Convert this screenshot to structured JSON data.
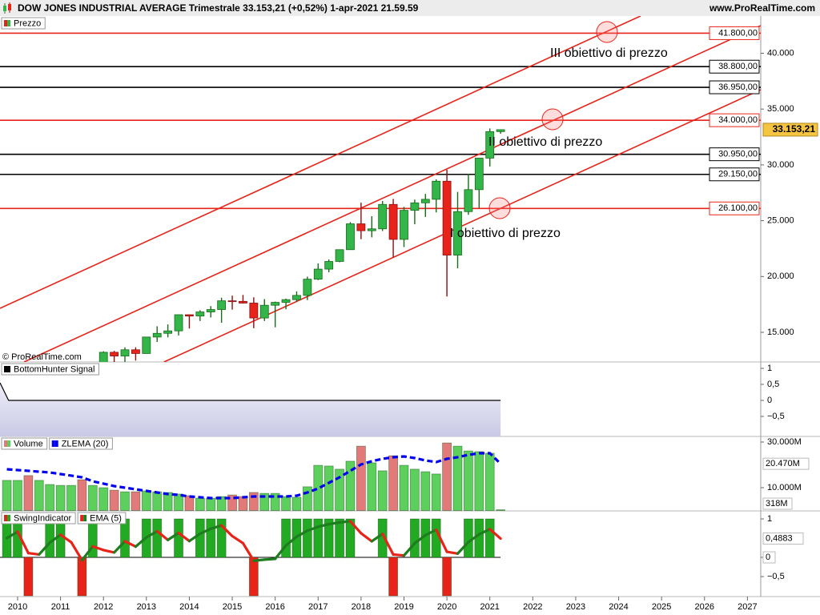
{
  "chart_data": [
    {
      "type": "candlestick",
      "title": "DOW JONES INDUSTRIAL AVERAGE Trimestrale 33.153,21 (+0,52%) 1-apr-2021 21.59.59",
      "source": "www.ProRealTime.com",
      "watermark": "© ProRealTime.com",
      "name": "Prezzo",
      "up_color": "#33b54a",
      "down_color": "#e8241a",
      "x": [
        2012,
        2012.25,
        2012.5,
        2012.75,
        2013,
        2013.25,
        2013.5,
        2013.75,
        2014,
        2014.25,
        2014.5,
        2014.75,
        2015,
        2015.25,
        2015.5,
        2015.75,
        2016,
        2016.25,
        2016.5,
        2016.75,
        2017,
        2017.25,
        2017.5,
        2017.75,
        2018,
        2018.25,
        2018.5,
        2018.75,
        2019,
        2019.25,
        2019.5,
        2019.75,
        2020,
        2020.25,
        2020.5,
        2020.75,
        2021,
        2021.25
      ],
      "open": [
        12217,
        13212,
        12880,
        13437,
        13104,
        14579,
        14910,
        15130,
        16577,
        16458,
        16827,
        17043,
        17823,
        17776,
        17620,
        16285,
        17425,
        17685,
        17930,
        18308,
        19763,
        20663,
        21350,
        22405,
        24719,
        24103,
        24271,
        26458,
        23327,
        25929,
        26600,
        26917,
        28538,
        21917,
        25813,
        27782,
        30606,
        32982
      ],
      "high": [
        13297,
        13338,
        13653,
        13661,
        14585,
        15542,
        15709,
        16588,
        16588,
        16978,
        17350,
        18103,
        18289,
        18351,
        18137,
        17977,
        17750,
        18017,
        18668,
        19988,
        21169,
        21535,
        22419,
        24876,
        26617,
        25403,
        26769,
        26952,
        26241,
        26890,
        27399,
        28702,
        29569,
        27581,
        29199,
        30637,
        33259,
        33167
      ],
      "low": [
        12215,
        12035,
        12101,
        12471,
        13104,
        14137,
        14551,
        14719,
        15340,
        16015,
        16333,
        15855,
        17037,
        17576,
        15370,
        16013,
        15451,
        17063,
        17713,
        17884,
        19677,
        20379,
        21279,
        22405,
        23344,
        23509,
        24078,
        21713,
        22638,
        24680,
        25339,
        25743,
        18214,
        20735,
        25524,
        26143,
        29856,
        32790
      ],
      "close": [
        13212,
        12880,
        13437,
        13104,
        14579,
        14910,
        15130,
        16577,
        16458,
        16827,
        17043,
        17823,
        17776,
        17620,
        16285,
        17425,
        17685,
        17930,
        18308,
        19763,
        20663,
        21350,
        22405,
        24719,
        24103,
        24271,
        26458,
        23327,
        25929,
        26600,
        26917,
        28538,
        21917,
        25813,
        27782,
        30606,
        32982,
        33153
      ],
      "ylim": [
        12346,
        43336
      ],
      "yticks": [
        {
          "value": 15000,
          "label": "15.000"
        },
        {
          "value": 20000,
          "label": "20.000"
        },
        {
          "value": 25000,
          "label": "25.000"
        },
        {
          "value": 30000,
          "label": "30.000"
        },
        {
          "value": 35000,
          "label": "35.000"
        },
        {
          "value": 40000,
          "label": "40.000"
        }
      ],
      "levels": [
        {
          "value": 41800,
          "label": "41.800,00",
          "color": "#e8241a"
        },
        {
          "value": 38800,
          "label": "38.800,00",
          "color": "#000000"
        },
        {
          "value": 36950,
          "label": "36.950,00",
          "color": "#000000"
        },
        {
          "value": 34000,
          "label": "34.000,00",
          "color": "#e8241a"
        },
        {
          "value": 30950,
          "label": "30.950,00",
          "color": "#000000"
        },
        {
          "value": 29150,
          "label": "29.150,00",
          "color": "#000000"
        },
        {
          "value": 26100,
          "label": "26.100,00",
          "color": "#e8241a"
        }
      ],
      "tags": [
        {
          "value": 33153.21,
          "label": "33.153,21",
          "color": "#f5c542"
        }
      ],
      "trendlines": {
        "color": "#e8241a",
        "lines": [
          {
            "x": [
              2009.59,
              2024.51
            ],
            "y": [
              17152,
              43336
            ]
          },
          {
            "x": [
              2010.15,
              2027.31
            ],
            "y": [
              12346,
              42475
            ]
          },
          {
            "x": [
              2013.41,
              2027.31
            ],
            "y": [
              12346,
              36736
            ]
          }
        ]
      },
      "annotations": [
        "III obiettivo di prezzo",
        "II obiettivo di prezzo",
        "I obiettivo di prezzo"
      ]
    },
    {
      "type": "area",
      "series": [
        {
          "name": "BottomHunter Signal",
          "color": "#000000",
          "x": [
            2009.59,
            2009.79,
            2021.25
          ],
          "values": [
            0.55,
            0,
            0
          ]
        }
      ],
      "ylim": [
        -1.125,
        1.2
      ],
      "yticks": [
        1,
        {
          "value": 0.5,
          "label": "0,5"
        },
        0,
        {
          "value": -0.5,
          "label": "−0,5"
        }
      ]
    },
    {
      "type": "bar",
      "x": [
        2009.75,
        2010,
        2010.25,
        2010.5,
        2010.75,
        2011,
        2011.25,
        2011.5,
        2011.75,
        2012,
        2012.25,
        2012.5,
        2012.75,
        2013,
        2013.25,
        2013.5,
        2013.75,
        2014,
        2014.25,
        2014.5,
        2014.75,
        2015,
        2015.25,
        2015.5,
        2015.75,
        2016,
        2016.25,
        2016.5,
        2016.75,
        2017,
        2017.25,
        2017.5,
        2017.75,
        2018,
        2018.25,
        2018.5,
        2018.75,
        2019,
        2019.25,
        2019.5,
        2019.75,
        2020,
        2020.25,
        2020.5,
        2020.75,
        2021,
        2021.25
      ],
      "series": [
        {
          "name": "Volume",
          "type": "bar",
          "colors": [
            "#5ccf5c",
            "#5ccf5c",
            "#e27a7a",
            "#5ccf5c",
            "#5ccf5c",
            "#5ccf5c",
            "#5ccf5c",
            "#e27a7a",
            "#5ccf5c",
            "#5ccf5c",
            "#e27a7a",
            "#5ccf5c",
            "#e27a7a",
            "#5ccf5c",
            "#5ccf5c",
            "#5ccf5c",
            "#5ccf5c",
            "#e27a7a",
            "#5ccf5c",
            "#5ccf5c",
            "#5ccf5c",
            "#e27a7a",
            "#e27a7a",
            "#e27a7a",
            "#5ccf5c",
            "#5ccf5c",
            "#5ccf5c",
            "#5ccf5c",
            "#5ccf5c",
            "#5ccf5c",
            "#5ccf5c",
            "#5ccf5c",
            "#5ccf5c",
            "#e27a7a",
            "#5ccf5c",
            "#5ccf5c",
            "#e27a7a",
            "#5ccf5c",
            "#5ccf5c",
            "#5ccf5c",
            "#5ccf5c",
            "#e27a7a",
            "#5ccf5c",
            "#5ccf5c",
            "#5ccf5c",
            "#5ccf5c",
            "#5ccf5c"
          ],
          "values": [
            13200,
            13200,
            15300,
            13200,
            11400,
            11000,
            11000,
            13500,
            11000,
            10000,
            8900,
            8200,
            8200,
            8600,
            8200,
            7900,
            7200,
            6500,
            5400,
            5400,
            6100,
            6800,
            6100,
            7900,
            7500,
            7500,
            6100,
            5800,
            10400,
            19800,
            19500,
            18100,
            21600,
            28200,
            20900,
            17400,
            24000,
            19800,
            18100,
            17000,
            16000,
            29600,
            28200,
            26100,
            25800,
            25100,
            318
          ]
        },
        {
          "name": "ZLEMA (20)",
          "type": "line",
          "color": "#0000ee",
          "values": [
            18070,
            17720,
            17370,
            17020,
            16670,
            15970,
            15270,
            14560,
            12810,
            11760,
            10700,
            10000,
            9300,
            8600,
            7890,
            7190,
            6840,
            6140,
            5790,
            5440,
            5440,
            5440,
            5790,
            6140,
            6140,
            6140,
            6140,
            6490,
            7890,
            9650,
            12110,
            14560,
            17370,
            20180,
            21580,
            22640,
            23340,
            23690,
            22990,
            21930,
            21230,
            22640,
            23340,
            24390,
            25090,
            25090,
            20470
          ]
        }
      ],
      "ylim": [
        -180,
        32460
      ],
      "yticks": [
        {
          "value": 30000,
          "label": "30.000M"
        },
        {
          "value": 10000,
          "label": "10.000M"
        }
      ],
      "tags": [
        {
          "value": 20470,
          "label": "20.470M",
          "color": "#0000ee"
        },
        {
          "value": 318,
          "label": "318M",
          "color": "#33b54a"
        }
      ]
    },
    {
      "type": "bar",
      "x": [
        2009.75,
        2010,
        2010.25,
        2010.5,
        2010.75,
        2011,
        2011.25,
        2011.5,
        2011.75,
        2012,
        2012.25,
        2012.5,
        2012.75,
        2013,
        2013.25,
        2013.5,
        2013.75,
        2014,
        2014.25,
        2014.5,
        2014.75,
        2015,
        2015.25,
        2015.5,
        2015.75,
        2016,
        2016.25,
        2016.5,
        2016.75,
        2017,
        2017.25,
        2017.5,
        2017.75,
        2018,
        2018.25,
        2018.5,
        2018.75,
        2019,
        2019.25,
        2019.5,
        2019.75,
        2020,
        2020.25,
        2020.5,
        2020.75,
        2021,
        2021.25
      ],
      "series": [
        {
          "name": "SwingIndicator",
          "type": "bar",
          "up_color": "#22aa22",
          "down_color": "#e8241a",
          "values": [
            1,
            1,
            -1,
            0,
            1,
            1,
            0,
            -1,
            1,
            0,
            0,
            1,
            0,
            1,
            1,
            0,
            1,
            0,
            1,
            1,
            1,
            0,
            0,
            -1,
            0,
            0,
            1,
            1,
            1,
            1,
            1,
            1,
            1,
            0,
            0,
            1,
            -1,
            0,
            1,
            1,
            1,
            -1,
            0,
            1,
            1,
            1,
            0
          ]
        },
        {
          "name": "EMA (5)",
          "type": "line",
          "up_color": "#1e7d1e",
          "down_color": "#e8241a",
          "values": [
            0.5,
            0.667,
            0.111,
            0.074,
            0.383,
            0.588,
            0.392,
            -0.072,
            0.285,
            0.19,
            0.127,
            0.418,
            0.279,
            0.519,
            0.679,
            0.453,
            0.635,
            0.423,
            0.615,
            0.743,
            0.829,
            0.553,
            0.368,
            -0.088,
            -0.059,
            -0.039,
            0.307,
            0.538,
            0.692,
            0.795,
            0.863,
            0.909,
            0.939,
            0.626,
            0.417,
            0.611,
            0.074,
            0.049,
            0.366,
            0.577,
            0.718,
            0.145,
            0.097,
            0.398,
            0.599,
            0.733,
            0.4883
          ]
        }
      ],
      "ylim": [
        -1.02,
        1.208
      ],
      "yticks": [
        1,
        0,
        {
          "value": -0.5,
          "label": "−0,5"
        }
      ],
      "tags": [
        {
          "value": 0.4883,
          "label": "0,4883",
          "color": "#e8241a"
        },
        {
          "value": 0,
          "label": "0",
          "color": "#22aa22"
        }
      ],
      "xlim": [
        2009.59,
        2027.31
      ],
      "xticks": [
        2010,
        2011,
        2012,
        2013,
        2014,
        2015,
        2016,
        2017,
        2018,
        2019,
        2020,
        2021,
        2022,
        2023,
        2024,
        2025,
        2026,
        2027
      ]
    }
  ]
}
